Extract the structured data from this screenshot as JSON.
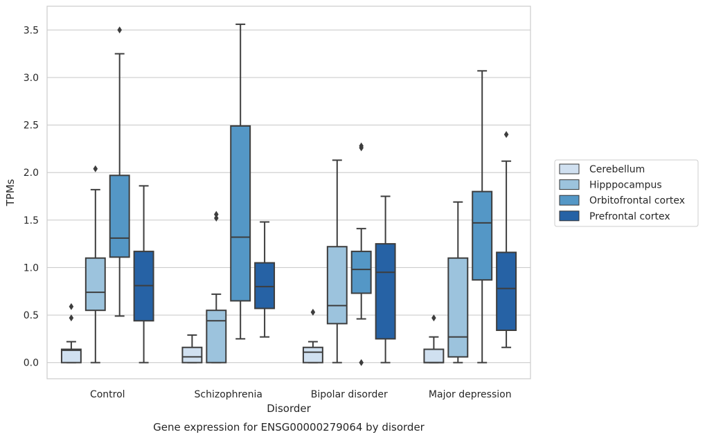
{
  "chart_data": {
    "type": "box",
    "title": "",
    "caption": "Gene expression for ENSG00000279064 by disorder",
    "xlabel": "Disorder",
    "ylabel": "TPMs",
    "ylim": [
      -0.17,
      3.75
    ],
    "yticks": [
      0.0,
      0.5,
      1.0,
      1.5,
      2.0,
      2.5,
      3.0,
      3.5
    ],
    "ytick_labels": [
      "0.0",
      "0.5",
      "1.0",
      "1.5",
      "2.0",
      "2.5",
      "3.0",
      "3.5"
    ],
    "grid": "horizontal",
    "legend_position": "right",
    "categories": [
      "Control",
      "Schizophrenia",
      "Bipolar disorder",
      "Major depression"
    ],
    "series": [
      {
        "name": "Cerebellum",
        "color": "#d0e0f0",
        "boxes": [
          {
            "whislo": 0.0,
            "q1": 0.0,
            "med": 0.13,
            "q3": 0.14,
            "whishi": 0.22,
            "fliers": [
              0.47,
              0.59
            ]
          },
          {
            "whislo": 0.0,
            "q1": 0.0,
            "med": 0.06,
            "q3": 0.16,
            "whishi": 0.29,
            "fliers": []
          },
          {
            "whislo": 0.0,
            "q1": 0.0,
            "med": 0.11,
            "q3": 0.16,
            "whishi": 0.22,
            "fliers": [
              0.53
            ]
          },
          {
            "whislo": 0.0,
            "q1": 0.0,
            "med": 0.0,
            "q3": 0.14,
            "whishi": 0.27,
            "fliers": [
              0.47
            ]
          }
        ]
      },
      {
        "name": "Hipppocampus",
        "color": "#9cc3dd",
        "boxes": [
          {
            "whislo": 0.0,
            "q1": 0.55,
            "med": 0.74,
            "q3": 1.1,
            "whishi": 1.82,
            "fliers": [
              2.04
            ]
          },
          {
            "whislo": 0.0,
            "q1": 0.0,
            "med": 0.44,
            "q3": 0.55,
            "whishi": 0.72,
            "fliers": [
              1.52,
              1.56
            ]
          },
          {
            "whislo": 0.0,
            "q1": 0.41,
            "med": 0.6,
            "q3": 1.22,
            "whishi": 2.13,
            "fliers": []
          },
          {
            "whislo": 0.0,
            "q1": 0.06,
            "med": 0.27,
            "q3": 1.1,
            "whishi": 1.69,
            "fliers": []
          }
        ]
      },
      {
        "name": "Orbitofrontal cortex",
        "color": "#5497c6",
        "boxes": [
          {
            "whislo": 0.49,
            "q1": 1.11,
            "med": 1.31,
            "q3": 1.97,
            "whishi": 3.25,
            "fliers": [
              3.5
            ]
          },
          {
            "whislo": 0.25,
            "q1": 0.65,
            "med": 1.32,
            "q3": 2.49,
            "whishi": 3.56,
            "fliers": []
          },
          {
            "whislo": 0.46,
            "q1": 0.73,
            "med": 0.98,
            "q3": 1.17,
            "whishi": 1.41,
            "fliers": [
              0.0,
              2.26,
              2.28
            ]
          },
          {
            "whislo": 0.0,
            "q1": 0.87,
            "med": 1.47,
            "q3": 1.8,
            "whishi": 3.07,
            "fliers": []
          }
        ]
      },
      {
        "name": "Prefrontal cortex",
        "color": "#2662a5",
        "boxes": [
          {
            "whislo": 0.0,
            "q1": 0.44,
            "med": 0.81,
            "q3": 1.17,
            "whishi": 1.86,
            "fliers": []
          },
          {
            "whislo": 0.27,
            "q1": 0.57,
            "med": 0.8,
            "q3": 1.05,
            "whishi": 1.48,
            "fliers": []
          },
          {
            "whislo": 0.0,
            "q1": 0.25,
            "med": 0.95,
            "q3": 1.25,
            "whishi": 1.75,
            "fliers": []
          },
          {
            "whislo": 0.16,
            "q1": 0.34,
            "med": 0.78,
            "q3": 1.16,
            "whishi": 2.12,
            "fliers": [
              2.4
            ]
          }
        ]
      }
    ]
  }
}
